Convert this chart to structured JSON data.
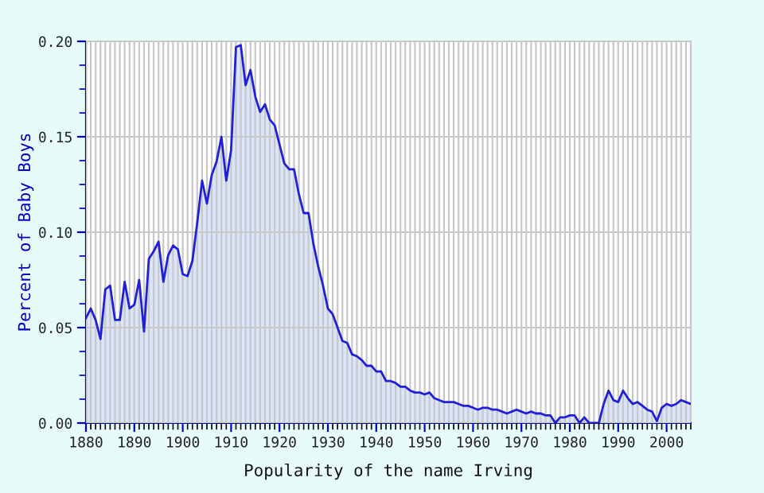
{
  "chart_data": {
    "type": "area",
    "xlabel": "Popularity of the name Irving",
    "ylabel": "Percent of Baby Boys",
    "x": [
      1880,
      1881,
      1882,
      1883,
      1884,
      1885,
      1886,
      1887,
      1888,
      1889,
      1890,
      1891,
      1892,
      1893,
      1894,
      1895,
      1896,
      1897,
      1898,
      1899,
      1900,
      1901,
      1902,
      1903,
      1904,
      1905,
      1906,
      1907,
      1908,
      1909,
      1910,
      1911,
      1912,
      1913,
      1914,
      1915,
      1916,
      1917,
      1918,
      1919,
      1920,
      1921,
      1922,
      1923,
      1924,
      1925,
      1926,
      1927,
      1928,
      1929,
      1930,
      1931,
      1932,
      1933,
      1934,
      1935,
      1936,
      1937,
      1938,
      1939,
      1940,
      1941,
      1942,
      1943,
      1944,
      1945,
      1946,
      1947,
      1948,
      1949,
      1950,
      1951,
      1952,
      1953,
      1954,
      1955,
      1956,
      1957,
      1958,
      1959,
      1960,
      1961,
      1962,
      1963,
      1964,
      1965,
      1966,
      1967,
      1968,
      1969,
      1970,
      1971,
      1972,
      1973,
      1974,
      1975,
      1976,
      1977,
      1978,
      1979,
      1980,
      1981,
      1982,
      1983,
      1984,
      1985,
      1986,
      1987,
      1988,
      1989,
      1990,
      1991,
      1992,
      1993,
      1994,
      1995,
      1996,
      1997,
      1998,
      1999,
      2000,
      2001,
      2002,
      2003,
      2004,
      2005
    ],
    "series": [
      {
        "color": "#2020d8",
        "values": [
          0.055,
          0.06,
          0.054,
          0.044,
          0.07,
          0.072,
          0.054,
          0.054,
          0.074,
          0.06,
          0.062,
          0.075,
          0.048,
          0.086,
          0.09,
          0.095,
          0.074,
          0.088,
          0.093,
          0.091,
          0.078,
          0.077,
          0.085,
          0.105,
          0.127,
          0.115,
          0.13,
          0.137,
          0.15,
          0.127,
          0.143,
          0.197,
          0.198,
          0.177,
          0.185,
          0.171,
          0.163,
          0.167,
          0.159,
          0.156,
          0.146,
          0.136,
          0.133,
          0.133,
          0.12,
          0.11,
          0.11,
          0.094,
          0.082,
          0.072,
          0.06,
          0.057,
          0.05,
          0.043,
          0.042,
          0.036,
          0.035,
          0.033,
          0.03,
          0.03,
          0.027,
          0.027,
          0.022,
          0.022,
          0.021,
          0.019,
          0.019,
          0.017,
          0.016,
          0.016,
          0.015,
          0.016,
          0.013,
          0.012,
          0.011,
          0.011,
          0.011,
          0.01,
          0.009,
          0.009,
          0.008,
          0.007,
          0.008,
          0.008,
          0.007,
          0.007,
          0.006,
          0.005,
          0.006,
          0.007,
          0.006,
          0.005,
          0.006,
          0.005,
          0.005,
          0.004,
          0.004,
          0.0,
          0.003,
          0.003,
          0.004,
          0.004,
          0.0,
          0.003,
          0.0,
          0.0,
          0.0,
          0.01,
          0.017,
          0.012,
          0.011,
          0.017,
          0.013,
          0.01,
          0.011,
          0.009,
          0.007,
          0.006,
          0.001,
          0.008,
          0.01,
          0.009,
          0.01,
          0.012,
          0.011,
          0.01
        ]
      }
    ],
    "xlim": [
      1880,
      2005
    ],
    "xticks": [
      1880,
      1890,
      1900,
      1910,
      1920,
      1930,
      1940,
      1950,
      1960,
      1970,
      1980,
      1990,
      2000
    ],
    "ylim": [
      0,
      0.2
    ],
    "yticks": [
      {
        "value": 0,
        "label": "0.00"
      },
      {
        "value": 0.05,
        "label": "0.05"
      },
      {
        "value": 0.1,
        "label": "0.10"
      },
      {
        "value": 0.15,
        "label": "0.15"
      },
      {
        "value": 0.2,
        "label": "0.20"
      }
    ],
    "grid": true,
    "legend": false
  }
}
